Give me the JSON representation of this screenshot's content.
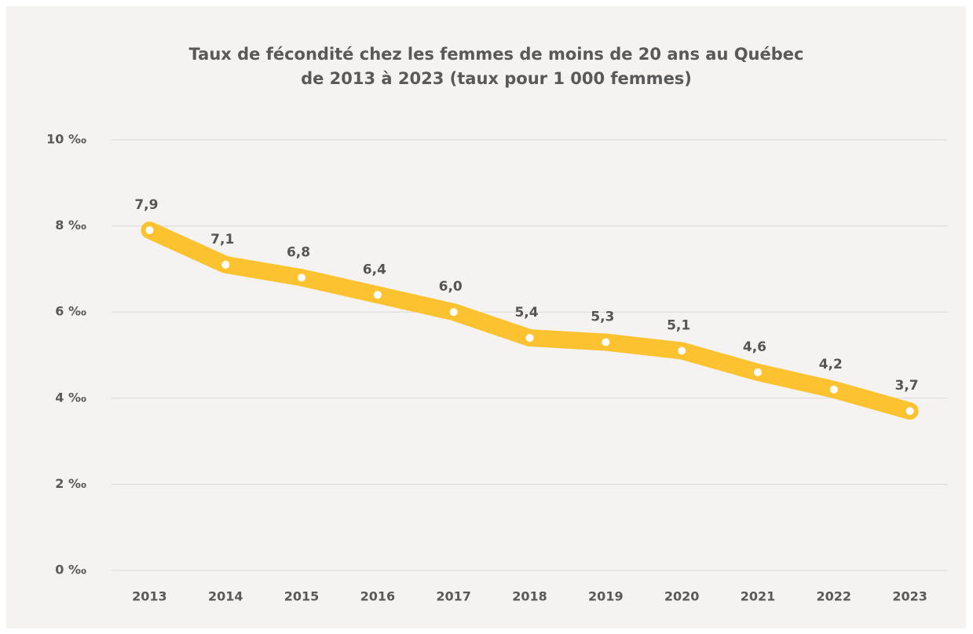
{
  "chart_data": {
    "type": "line",
    "title": [
      "Taux de fécondité chez les femmes de moins de 20 ans au Québec",
      "de 2013 à 2023 (taux pour 1 000 femmes)"
    ],
    "categories": [
      "2013",
      "2014",
      "2015",
      "2016",
      "2017",
      "2018",
      "2019",
      "2020",
      "2021",
      "2022",
      "2023"
    ],
    "values": [
      7.9,
      7.1,
      6.8,
      6.4,
      6.0,
      5.4,
      5.3,
      5.1,
      4.6,
      4.2,
      3.7
    ],
    "value_labels": [
      "7,9",
      "7,1",
      "6,8",
      "6,4",
      "6,0",
      "5,4",
      "5,3",
      "5,1",
      "4,6",
      "4,2",
      "3,7"
    ],
    "color": "#fcc230",
    "ylim": [
      0,
      10
    ],
    "yticks": [
      {
        "value": 0,
        "label": "0 ‰"
      },
      {
        "value": 2,
        "label": "2 ‰"
      },
      {
        "value": 4,
        "label": "4 ‰"
      },
      {
        "value": 6,
        "label": "6 ‰"
      },
      {
        "value": 8,
        "label": "8 ‰"
      },
      {
        "value": 10,
        "label": "10 ‰"
      }
    ],
    "grid": true
  }
}
